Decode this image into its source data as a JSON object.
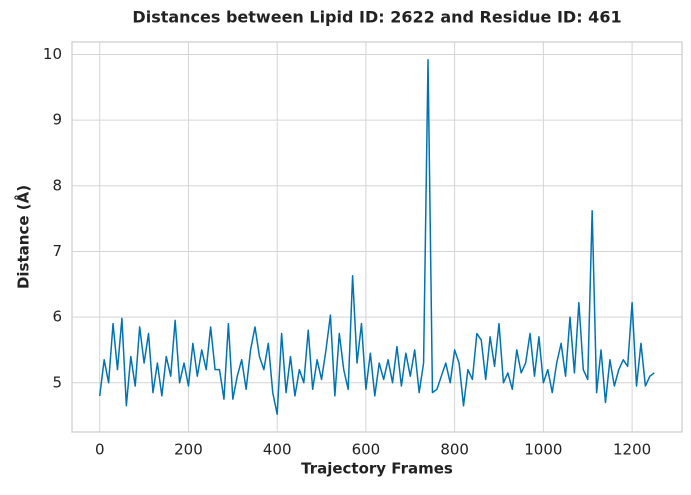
{
  "chart_data": {
    "type": "line",
    "title": "Distances between Lipid ID: 2622 and Residue ID: 461",
    "xlabel": "Trajectory Frames",
    "ylabel": "Distance (Å)",
    "x": [
      0,
      10,
      20,
      30,
      40,
      50,
      60,
      70,
      80,
      90,
      100,
      110,
      120,
      130,
      140,
      150,
      160,
      170,
      180,
      190,
      200,
      210,
      220,
      230,
      240,
      250,
      260,
      270,
      280,
      290,
      300,
      310,
      320,
      330,
      340,
      350,
      360,
      370,
      380,
      390,
      400,
      410,
      420,
      430,
      440,
      450,
      460,
      470,
      480,
      490,
      500,
      510,
      520,
      530,
      540,
      550,
      560,
      570,
      580,
      590,
      600,
      610,
      620,
      630,
      640,
      650,
      660,
      670,
      680,
      690,
      700,
      710,
      720,
      730,
      740,
      750,
      760,
      770,
      780,
      790,
      800,
      810,
      820,
      830,
      840,
      850,
      860,
      870,
      880,
      890,
      900,
      910,
      920,
      930,
      940,
      950,
      960,
      970,
      980,
      990,
      1000,
      1010,
      1020,
      1030,
      1040,
      1050,
      1060,
      1070,
      1080,
      1090,
      1100,
      1110,
      1120,
      1130,
      1140,
      1150,
      1160,
      1170,
      1180,
      1190,
      1200,
      1210,
      1220,
      1230,
      1240,
      1250
    ],
    "series": [
      {
        "name": "Distance",
        "color": "#0173b2",
        "values": [
          4.8,
          5.35,
          5.0,
          5.9,
          5.2,
          5.98,
          4.65,
          5.4,
          4.95,
          5.85,
          5.3,
          5.75,
          4.85,
          5.3,
          4.8,
          5.4,
          5.1,
          5.95,
          5.0,
          5.3,
          4.95,
          5.6,
          5.1,
          5.5,
          5.2,
          5.85,
          5.2,
          5.2,
          4.75,
          5.9,
          4.75,
          5.1,
          5.35,
          4.9,
          5.5,
          5.85,
          5.4,
          5.2,
          5.6,
          4.85,
          4.52,
          5.75,
          4.85,
          5.4,
          4.8,
          5.2,
          5.0,
          5.8,
          4.9,
          5.35,
          5.05,
          5.5,
          6.03,
          4.8,
          5.75,
          5.2,
          4.9,
          6.63,
          5.3,
          5.9,
          4.9,
          5.45,
          4.8,
          5.3,
          5.05,
          5.35,
          5.0,
          5.55,
          4.95,
          5.45,
          5.1,
          5.5,
          4.85,
          5.3,
          9.92,
          4.85,
          4.9,
          5.1,
          5.3,
          5.0,
          5.5,
          5.3,
          4.65,
          5.2,
          5.05,
          5.75,
          5.65,
          5.05,
          5.7,
          5.25,
          5.9,
          5.0,
          5.15,
          4.9,
          5.5,
          5.15,
          5.3,
          5.75,
          5.1,
          5.7,
          5.0,
          5.2,
          4.85,
          5.3,
          5.6,
          5.1,
          6.0,
          5.15,
          6.22,
          5.2,
          5.05,
          7.62,
          4.85,
          5.5,
          4.7,
          5.35,
          4.95,
          5.2,
          5.35,
          5.25,
          6.22,
          4.95,
          5.6,
          4.95,
          5.1,
          5.15
        ]
      }
    ],
    "xlim": [
      -62.5,
      1312.5
    ],
    "ylim": [
      4.25,
      10.19
    ],
    "xticks": [
      0,
      200,
      400,
      600,
      800,
      1000,
      1200
    ],
    "yticks": [
      5,
      6,
      7,
      8,
      9,
      10
    ],
    "grid": true
  }
}
